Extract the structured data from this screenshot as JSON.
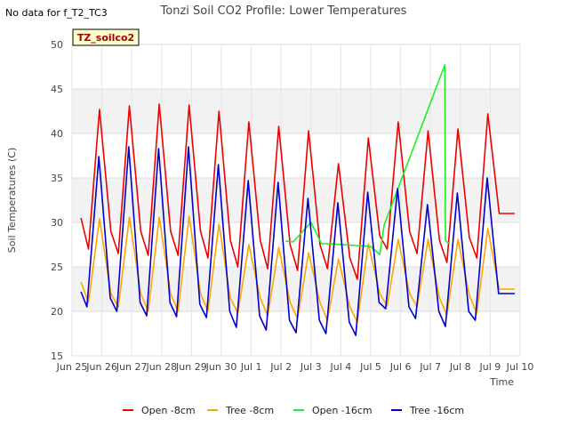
{
  "no_data_message": "No data for f_T2_TC3",
  "site_tag": "TZ_soilco2",
  "chart_data": {
    "type": "line",
    "title": "Tonzi Soil CO2 Profile: Lower Temperatures",
    "xlabel": "Time",
    "ylabel": "Soil Temperatures (C)",
    "ylim": [
      15,
      50
    ],
    "xlim": [
      0,
      15
    ],
    "yticks": [
      15,
      20,
      25,
      30,
      35,
      40,
      45,
      50
    ],
    "xticks": [
      {
        "x": 0,
        "label": "Jun 25"
      },
      {
        "x": 1,
        "label": "Jun 26"
      },
      {
        "x": 2,
        "label": "Jun 27"
      },
      {
        "x": 3,
        "label": "Jun 28"
      },
      {
        "x": 4,
        "label": "Jun 29"
      },
      {
        "x": 5,
        "label": "Jun 30"
      },
      {
        "x": 6,
        "label": "Jul 1"
      },
      {
        "x": 7,
        "label": "Jul 2"
      },
      {
        "x": 8,
        "label": "Jul 3"
      },
      {
        "x": 9,
        "label": "Jul 4"
      },
      {
        "x": 10,
        "label": "Jul 5"
      },
      {
        "x": 11,
        "label": "Jul 6"
      },
      {
        "x": 12,
        "label": "Jul 7"
      },
      {
        "x": 13,
        "label": "Jul 8"
      },
      {
        "x": 14,
        "label": "Jul 9"
      },
      {
        "x": 15,
        "label": "Jul 10"
      }
    ],
    "grid": true,
    "banded_background": true,
    "legend_position": "bottom",
    "series": [
      {
        "name": "Open -8cm",
        "color": "#ee0000",
        "x": [
          0.3,
          0.55,
          0.92,
          1.3,
          1.55,
          1.92,
          2.3,
          2.55,
          2.92,
          3.3,
          3.55,
          3.92,
          4.3,
          4.55,
          4.92,
          5.3,
          5.55,
          5.92,
          6.3,
          6.55,
          6.92,
          7.3,
          7.55,
          7.92,
          8.3,
          8.55,
          8.92,
          9.3,
          9.55,
          9.92,
          10.3,
          10.55,
          10.92,
          11.3,
          11.55,
          11.92,
          12.3,
          12.55,
          12.92,
          13.3,
          13.55,
          13.92,
          14.3,
          14.55,
          14.82
        ],
        "y": [
          30.5,
          27,
          42.7,
          29,
          26.5,
          43.1,
          29,
          26.3,
          43.3,
          29,
          26.3,
          43.2,
          29,
          26,
          42.5,
          28,
          25,
          41.3,
          28,
          24.8,
          40.8,
          27.5,
          24.6,
          40.3,
          27.5,
          24.8,
          36.6,
          26,
          23.6,
          39.5,
          28.5,
          27,
          41.3,
          29,
          26.5,
          40.3,
          28,
          25.5,
          40.5,
          28.3,
          26,
          42.2,
          31,
          31,
          31
        ]
      },
      {
        "name": "Tree -8cm",
        "color": "#ffa500",
        "x": [
          0.3,
          0.55,
          0.92,
          1.3,
          1.55,
          1.92,
          2.3,
          2.55,
          2.92,
          3.3,
          3.55,
          3.92,
          4.3,
          4.55,
          4.92,
          5.3,
          5.55,
          5.92,
          6.3,
          6.55,
          6.92,
          7.3,
          7.55,
          7.92,
          8.3,
          8.55,
          8.92,
          9.3,
          9.55,
          9.92,
          10.3,
          10.55,
          10.92,
          11.3,
          11.55,
          11.92,
          12.3,
          12.55,
          12.92,
          13.3,
          13.55,
          13.92,
          14.3,
          14.55,
          14.82
        ],
        "y": [
          23.3,
          21,
          30.4,
          22,
          20.5,
          30.6,
          22,
          20,
          30.6,
          22,
          20,
          30.7,
          22,
          20,
          29.8,
          21.5,
          19.8,
          27.5,
          21.5,
          19.5,
          27.2,
          21,
          19.2,
          26.6,
          21,
          19,
          25.9,
          20.5,
          18.8,
          27.6,
          22,
          20.6,
          28.1,
          22,
          20.5,
          28.1,
          21.5,
          19.6,
          28.1,
          21.8,
          19.8,
          29.3,
          22.5,
          22.5,
          22.5
        ]
      },
      {
        "name": "Open -16cm",
        "color": "#22ee22",
        "x": [
          7.15,
          7.4,
          8.0,
          8.35,
          8.6,
          9.5,
          10.0,
          10.3,
          10.45,
          12.48,
          12.5,
          12.55,
          12.65
        ],
        "y": [
          27.9,
          27.8,
          30.0,
          27.6,
          27.6,
          27.4,
          27.3,
          26.4,
          29.7,
          47.7,
          28.0,
          27.8,
          27.6
        ]
      },
      {
        "name": "Tree -16cm",
        "color": "#0000cc",
        "x": [
          0.3,
          0.5,
          0.9,
          1.28,
          1.5,
          1.9,
          2.28,
          2.5,
          2.9,
          3.28,
          3.5,
          3.9,
          4.28,
          4.5,
          4.9,
          5.28,
          5.5,
          5.9,
          6.28,
          6.5,
          6.9,
          7.28,
          7.5,
          7.9,
          8.28,
          8.5,
          8.9,
          9.28,
          9.5,
          9.9,
          10.28,
          10.5,
          10.9,
          11.28,
          11.5,
          11.9,
          12.28,
          12.5,
          12.9,
          13.28,
          13.5,
          13.9,
          14.28,
          14.5,
          14.82
        ],
        "y": [
          22.2,
          20.5,
          37.4,
          21.5,
          20,
          38.5,
          21,
          19.5,
          38.3,
          21,
          19.4,
          38.5,
          20.8,
          19.3,
          36.5,
          20,
          18.2,
          34.7,
          19.5,
          17.9,
          34.5,
          19,
          17.6,
          32.7,
          19,
          17.5,
          32.2,
          18.8,
          17.3,
          33.4,
          21,
          20.3,
          33.8,
          20.5,
          19.2,
          32,
          20,
          18.3,
          33.3,
          20,
          19,
          35,
          22,
          22,
          22
        ]
      }
    ]
  }
}
